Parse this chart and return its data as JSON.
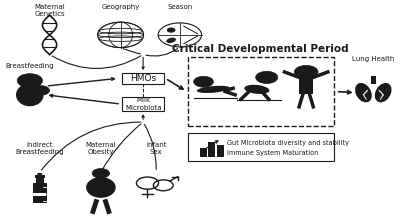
{
  "bg_color": "#ffffff",
  "title_text": "Critical Developmental Period",
  "hmos_label": "HMOs",
  "milk_label": "Milk\nMicrobiota",
  "breastfeeding_label": "Breastfeeding",
  "lung_label": "Lung Health",
  "indirect_label": "Indirect\nBreastfeeding",
  "maternal_obesity_label": "Maternal\nObesity",
  "infant_sex_label": "Infant\nSex",
  "maternal_genetics_label": "Maternal\nGenetics",
  "geography_label": "Geography",
  "season_label": "Season",
  "gut_text1": "Gut Microbiota diversity and stability",
  "gut_text2": "Immune System Maturation",
  "arrow_color": "#1a1a1a",
  "box_color": "#1a1a1a",
  "text_color": "#1a1a1a",
  "icon_color": "#1a1a1a",
  "fs_tiny": 5.0,
  "fs_small": 5.5,
  "fs_med": 6.5,
  "fs_title": 7.5,
  "fs_icon_sm": 9,
  "fs_icon_md": 13,
  "fs_icon_lg": 16
}
